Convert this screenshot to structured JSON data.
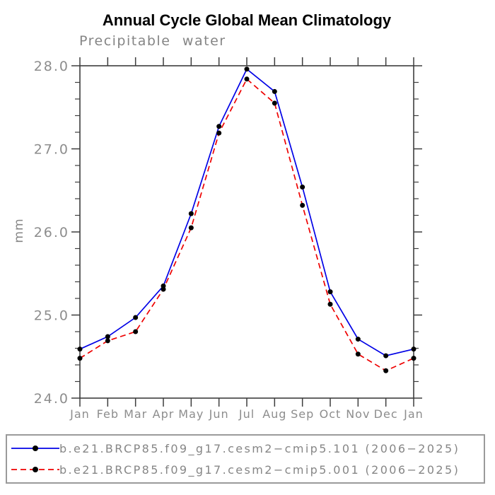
{
  "style": {
    "axis_color": "#3d3d3d",
    "label_color": "#8d8d8d",
    "title_color": "#000000",
    "legend_border_color": "#9a9a9a",
    "background_color": "#ffffff"
  },
  "chart_data": {
    "type": "line",
    "title": "Annual Cycle Global Mean Climatology",
    "subtitle": "Precipitable water",
    "xlabel": "",
    "ylabel": "mm",
    "ylim": [
      24.0,
      28.0
    ],
    "ytick_interval": 1.0,
    "ytick_minor_interval": 0.2,
    "ytick_labels": [
      "24.0",
      "25.0",
      "26.0",
      "27.0",
      "28.0"
    ],
    "grid": false,
    "legend_position": "bottom",
    "categories": [
      "Jan",
      "Feb",
      "Mar",
      "Apr",
      "May",
      "Jun",
      "Jul",
      "Aug",
      "Sep",
      "Oct",
      "Nov",
      "Dec",
      "Jan"
    ],
    "series": [
      {
        "name": "b.e21.BRCP85.f09_g17.cesm2−cmip5.101 (2006−2025)",
        "color": "#0000e6",
        "style": "solid",
        "marker": "filled-circle",
        "marker_color": "#000000",
        "values": [
          24.59,
          24.74,
          24.97,
          25.35,
          26.22,
          27.27,
          27.96,
          27.69,
          26.54,
          25.28,
          24.71,
          24.51,
          24.59
        ]
      },
      {
        "name": "b.e21.BRCP85.f09_g17.cesm2−cmip5.001 (2006−2025)",
        "color": "#ee0000",
        "style": "dashed",
        "marker": "filled-circle",
        "marker_color": "#000000",
        "values": [
          24.48,
          24.69,
          24.8,
          25.31,
          26.05,
          27.19,
          27.84,
          27.55,
          26.32,
          25.13,
          24.53,
          24.33,
          24.48
        ]
      }
    ]
  }
}
